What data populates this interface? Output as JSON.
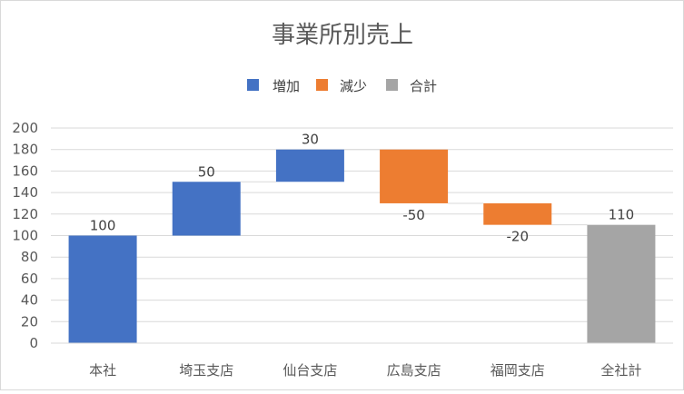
{
  "chart_data": {
    "type": "bar",
    "subtype": "waterfall",
    "title": "事業所別売上",
    "xlabel": "",
    "ylabel": "",
    "ylim": [
      0,
      200
    ],
    "yticks": [
      0,
      20,
      40,
      60,
      80,
      100,
      120,
      140,
      160,
      180,
      200
    ],
    "ytick_labels": [
      "0",
      "20",
      "40",
      "60",
      "80",
      "100",
      "120",
      "140",
      "160",
      "180",
      "200"
    ],
    "grid": true,
    "legend_position": "top",
    "legend": [
      {
        "name": "増加",
        "color": "#4472c4"
      },
      {
        "name": "減少",
        "color": "#ed7d31"
      },
      {
        "name": "合計",
        "color": "#a5a5a5"
      }
    ],
    "categories": [
      "本社",
      "埼玉支店",
      "仙台支店",
      "広島支店",
      "福岡支店",
      "全社計"
    ],
    "values": [
      100,
      50,
      30,
      -50,
      -20,
      110
    ],
    "data_labels": [
      "100",
      "50",
      "30",
      "-50",
      "-20",
      "110"
    ],
    "kinds": [
      "増加",
      "増加",
      "増加",
      "減少",
      "減少",
      "合計"
    ]
  }
}
